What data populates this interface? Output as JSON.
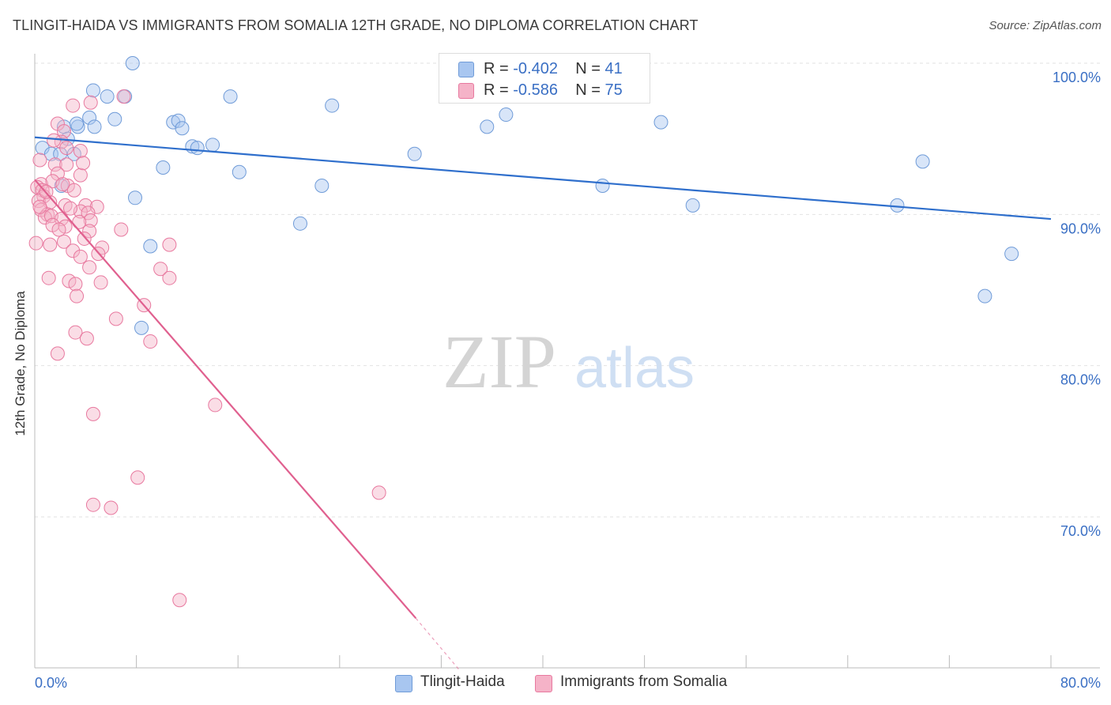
{
  "header": {
    "title": "TLINGIT-HAIDA VS IMMIGRANTS FROM SOMALIA 12TH GRADE, NO DIPLOMA CORRELATION CHART",
    "source": "Source: ZipAtlas.com"
  },
  "watermark": {
    "zip": "ZIP",
    "atlas": "atlas"
  },
  "legend": {
    "rows": [
      {
        "r_label": "R =",
        "r_value": "-0.402",
        "n_label": "N =",
        "n_value": "41",
        "color": "#a8c6f0"
      },
      {
        "r_label": "R =",
        "r_value": "-0.586",
        "n_label": "N =",
        "n_value": "75",
        "color": "#f5b3c8"
      }
    ]
  },
  "bottom_legend": [
    {
      "label": "Tlingit-Haida",
      "color": "#a8c6f0"
    },
    {
      "label": "Immigrants from Somalia",
      "color": "#f5b3c8"
    }
  ],
  "chart_data": {
    "type": "scatter",
    "title": "TLINGIT-HAIDA VS IMMIGRANTS FROM SOMALIA 12TH GRADE, NO DIPLOMA CORRELATION CHART",
    "xlabel": "",
    "ylabel": "12th Grade, No Diploma",
    "xlim": [
      0,
      80
    ],
    "ylim": [
      60,
      102
    ],
    "x_tick_labels": [
      "0.0%",
      "80.0%"
    ],
    "y_ticks": [
      70,
      80,
      90,
      100
    ],
    "y_tick_labels": [
      "70.0%",
      "80.0%",
      "90.0%",
      "100.0%"
    ],
    "grid": true,
    "accent_text_color": "#3a6fc4",
    "series": [
      {
        "name": "Tlingit-Haida",
        "color": "#a8c6f0",
        "stroke": "#6f9bd8",
        "line_color": "#2f6fcc",
        "trend": {
          "x": [
            0,
            80
          ],
          "y": [
            95.1,
            89.7
          ]
        },
        "points": [
          [
            7.7,
            100.0
          ],
          [
            4.6,
            98.2
          ],
          [
            5.7,
            97.8
          ],
          [
            7.1,
            97.8
          ],
          [
            15.4,
            97.8
          ],
          [
            23.4,
            97.2
          ],
          [
            2.3,
            95.8
          ],
          [
            4.3,
            96.4
          ],
          [
            6.3,
            96.3
          ],
          [
            10.9,
            96.1
          ],
          [
            11.3,
            96.2
          ],
          [
            3.4,
            95.8
          ],
          [
            4.7,
            95.8
          ],
          [
            11.6,
            95.7
          ],
          [
            35.6,
            95.8
          ],
          [
            37.1,
            96.6
          ],
          [
            49.3,
            96.1
          ],
          [
            2.6,
            95.0
          ],
          [
            0.6,
            94.4
          ],
          [
            12.4,
            94.5
          ],
          [
            12.8,
            94.4
          ],
          [
            1.3,
            94.0
          ],
          [
            3.1,
            94.0
          ],
          [
            29.9,
            94.0
          ],
          [
            10.1,
            93.1
          ],
          [
            16.1,
            92.8
          ],
          [
            69.9,
            93.5
          ],
          [
            2.1,
            91.9
          ],
          [
            22.6,
            91.9
          ],
          [
            44.7,
            91.9
          ],
          [
            7.9,
            91.1
          ],
          [
            51.8,
            90.6
          ],
          [
            67.9,
            90.6
          ],
          [
            20.9,
            89.4
          ],
          [
            9.1,
            87.9
          ],
          [
            76.9,
            87.4
          ],
          [
            74.8,
            84.6
          ],
          [
            8.4,
            82.5
          ],
          [
            3.3,
            96.0
          ],
          [
            2.0,
            94.0
          ],
          [
            14.0,
            94.6
          ]
        ]
      },
      {
        "name": "Immigrants from Somalia",
        "color": "#f5b3c8",
        "stroke": "#e8799f",
        "line_color": "#e0608f",
        "trend": {
          "x": [
            0,
            30
          ],
          "y": [
            92.3,
            63.3
          ]
        },
        "trend_dashed": {
          "x": [
            30,
            33.5
          ],
          "y": [
            63.3,
            59.8
          ]
        },
        "points": [
          [
            7.0,
            97.8
          ],
          [
            4.4,
            97.4
          ],
          [
            3.0,
            97.2
          ],
          [
            1.8,
            96.0
          ],
          [
            2.3,
            95.5
          ],
          [
            2.1,
            94.8
          ],
          [
            3.6,
            94.2
          ],
          [
            2.5,
            94.4
          ],
          [
            0.4,
            93.6
          ],
          [
            1.6,
            93.3
          ],
          [
            2.5,
            93.3
          ],
          [
            1.8,
            92.7
          ],
          [
            3.6,
            92.6
          ],
          [
            0.5,
            92.0
          ],
          [
            1.4,
            92.2
          ],
          [
            2.6,
            91.9
          ],
          [
            0.2,
            91.8
          ],
          [
            0.6,
            91.6
          ],
          [
            3.1,
            91.6
          ],
          [
            0.7,
            91.2
          ],
          [
            0.3,
            90.9
          ],
          [
            1.2,
            90.8
          ],
          [
            2.4,
            90.6
          ],
          [
            4.0,
            90.6
          ],
          [
            4.9,
            90.5
          ],
          [
            0.5,
            90.3
          ],
          [
            1.0,
            90.0
          ],
          [
            3.6,
            90.2
          ],
          [
            4.2,
            90.1
          ],
          [
            0.8,
            89.8
          ],
          [
            1.3,
            89.9
          ],
          [
            2.1,
            89.7
          ],
          [
            4.4,
            89.6
          ],
          [
            1.4,
            89.3
          ],
          [
            2.4,
            89.2
          ],
          [
            4.3,
            88.9
          ],
          [
            3.9,
            88.4
          ],
          [
            1.2,
            88.0
          ],
          [
            2.3,
            88.2
          ],
          [
            0.1,
            88.1
          ],
          [
            3.0,
            87.6
          ],
          [
            5.3,
            87.8
          ],
          [
            10.6,
            88.0
          ],
          [
            3.6,
            87.2
          ],
          [
            4.3,
            86.5
          ],
          [
            9.9,
            86.4
          ],
          [
            1.1,
            85.8
          ],
          [
            2.7,
            85.6
          ],
          [
            3.2,
            85.4
          ],
          [
            5.2,
            85.5
          ],
          [
            10.6,
            85.8
          ],
          [
            3.3,
            84.6
          ],
          [
            8.6,
            84.0
          ],
          [
            6.4,
            83.1
          ],
          [
            3.2,
            82.2
          ],
          [
            4.1,
            81.8
          ],
          [
            9.1,
            81.6
          ],
          [
            1.8,
            80.8
          ],
          [
            14.2,
            77.4
          ],
          [
            4.6,
            76.8
          ],
          [
            8.1,
            72.6
          ],
          [
            27.1,
            71.6
          ],
          [
            4.6,
            70.8
          ],
          [
            6.0,
            70.6
          ],
          [
            11.4,
            64.5
          ],
          [
            2.2,
            92.0
          ],
          [
            3.8,
            93.4
          ],
          [
            1.5,
            94.9
          ],
          [
            0.9,
            91.5
          ],
          [
            2.8,
            90.4
          ],
          [
            3.5,
            89.5
          ],
          [
            5.0,
            87.4
          ],
          [
            6.8,
            89.0
          ],
          [
            1.9,
            89.0
          ],
          [
            0.4,
            90.5
          ]
        ]
      }
    ]
  }
}
